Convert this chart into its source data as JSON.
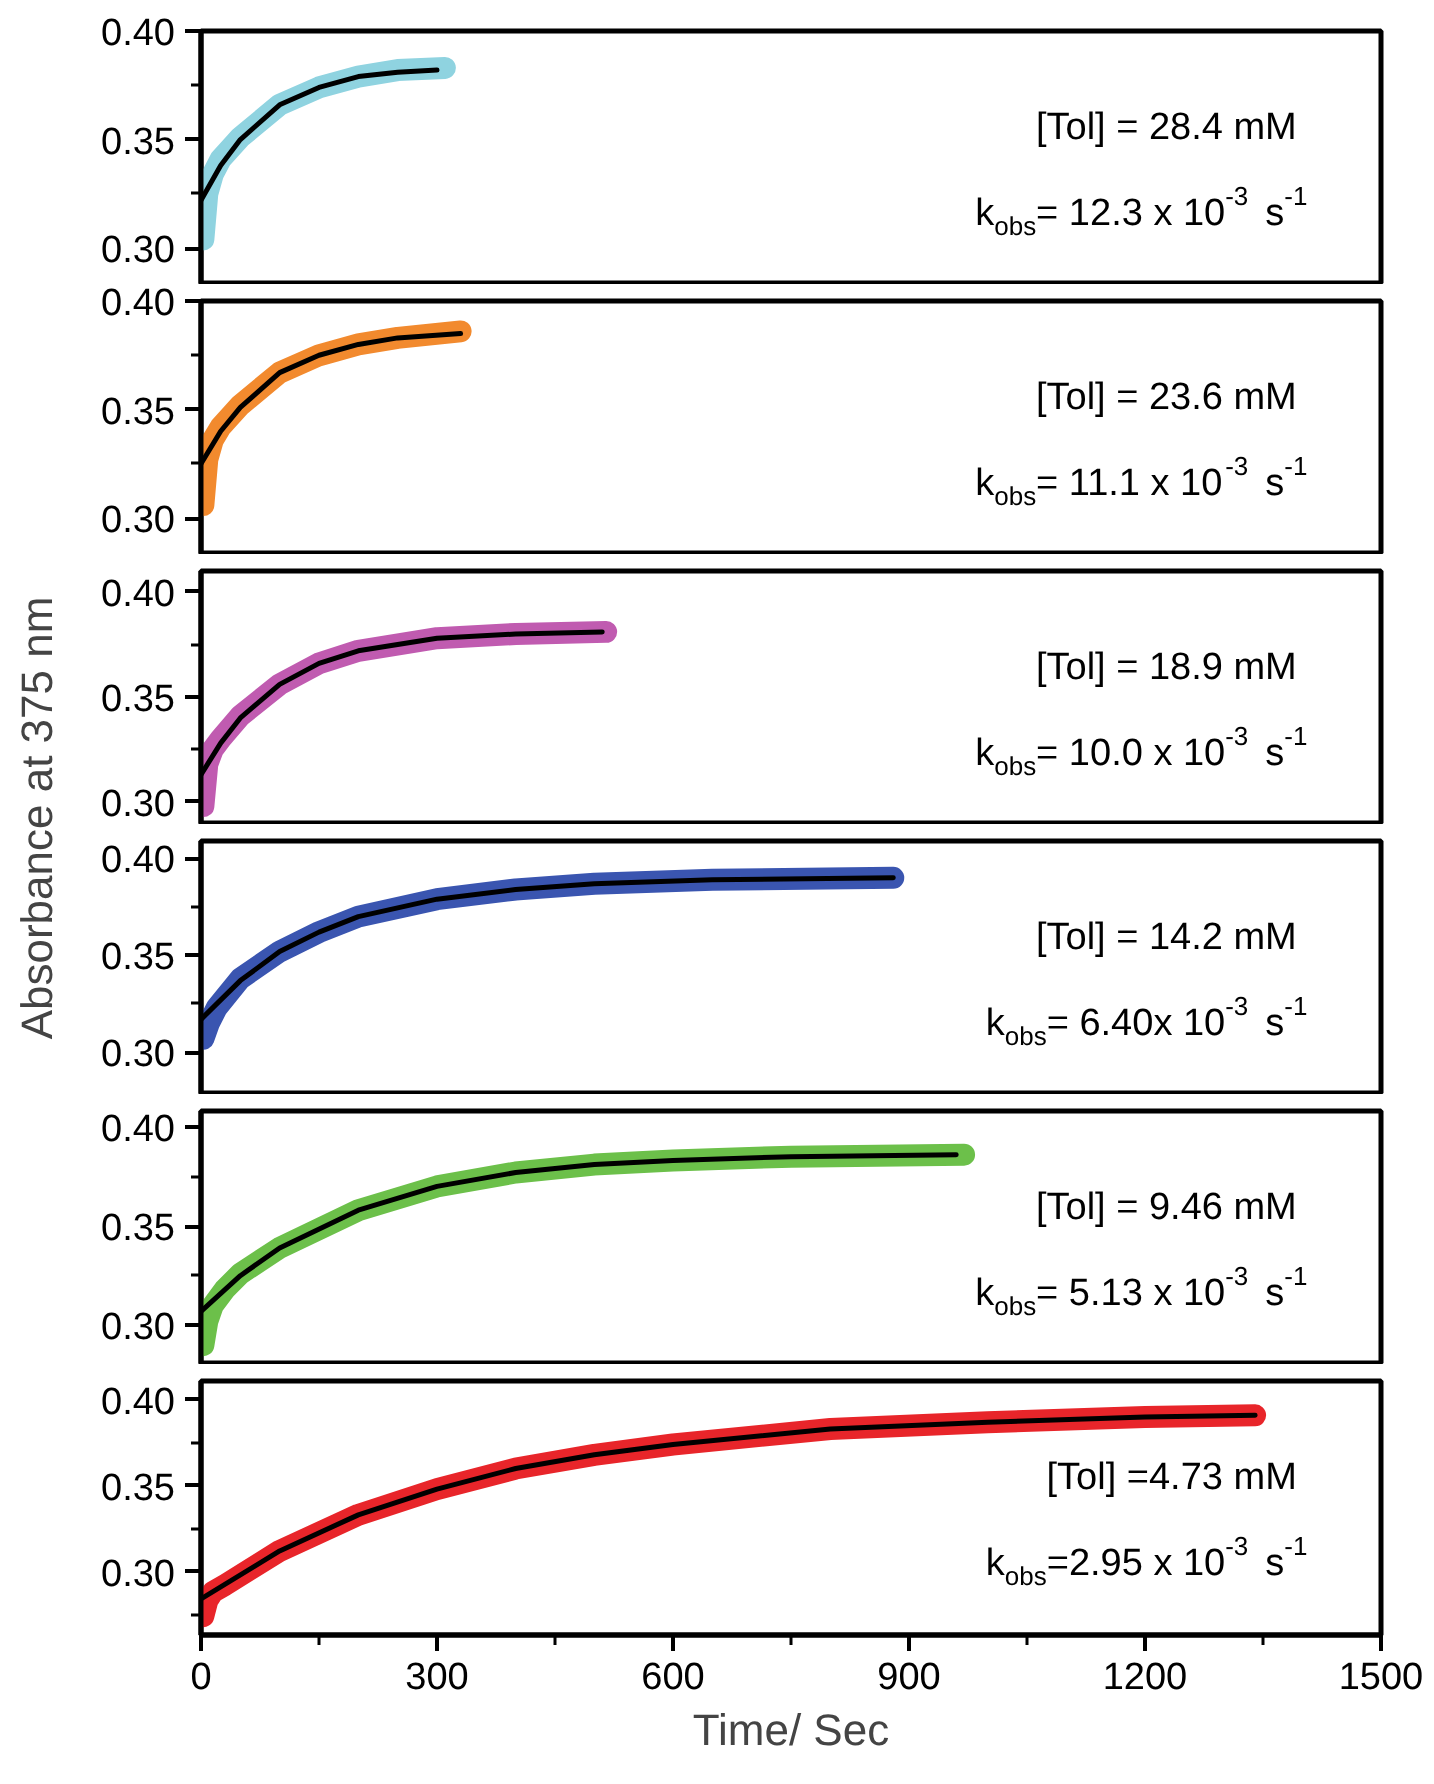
{
  "chart_data": [
    {
      "type": "line",
      "xlim": [
        0,
        1500
      ],
      "xticks": [
        0,
        300,
        600,
        900,
        1200,
        1500
      ],
      "ylim": [
        0.283,
        0.4
      ],
      "yticks": [
        {
          "value": 0.3,
          "label": "0.30"
        },
        {
          "value": 0.35,
          "label": "0.35"
        },
        {
          "value": 0.4,
          "label": "0.40"
        }
      ],
      "tick_labels": "y",
      "grid": false,
      "annotations": [
        "[Tol] = 28.4 mM",
        "k$_{obs}$= 12.3 x 10$^{-3}$ s$^{-1}$"
      ],
      "series": [
        {
          "color": "#8fd3e0",
          "x": [
            3,
            8,
            15,
            25,
            50,
            100,
            150,
            200,
            250,
            310
          ],
          "values": [
            0.304,
            0.325,
            0.334,
            0.341,
            0.351,
            0.366,
            0.374,
            0.379,
            0.382,
            0.383
          ]
        },
        {
          "color": "#000000",
          "x": [
            0,
            25,
            50,
            100,
            150,
            200,
            250,
            300
          ],
          "values": [
            0.322,
            0.338,
            0.35,
            0.366,
            0.374,
            0.379,
            0.381,
            0.382
          ]
        }
      ]
    },
    {
      "type": "line",
      "xlim": [
        0,
        1500
      ],
      "xticks": [
        0,
        300,
        600,
        900,
        1200,
        1500
      ],
      "ylim": [
        0.283,
        0.4
      ],
      "yticks": [
        {
          "value": 0.3,
          "label": "0.30"
        },
        {
          "value": 0.35,
          "label": "0.35"
        },
        {
          "value": 0.4,
          "label": "0.40"
        }
      ],
      "tick_labels": "y",
      "grid": false,
      "annotations": [
        "[Tol] = 23.6 mM",
        "k$_{obs}$= 11.1 x 10$^{-3}$ s$^{-1}$"
      ],
      "series": [
        {
          "color": "#f28a2e",
          "x": [
            3,
            8,
            15,
            25,
            50,
            100,
            150,
            200,
            250,
            330
          ],
          "values": [
            0.306,
            0.327,
            0.336,
            0.342,
            0.352,
            0.367,
            0.375,
            0.38,
            0.383,
            0.386
          ]
        },
        {
          "color": "#000000",
          "x": [
            0,
            25,
            50,
            100,
            150,
            200,
            250,
            330
          ],
          "values": [
            0.325,
            0.34,
            0.351,
            0.367,
            0.375,
            0.38,
            0.383,
            0.385
          ]
        }
      ]
    },
    {
      "type": "line",
      "xlim": [
        0,
        1500
      ],
      "xticks": [
        0,
        300,
        600,
        900,
        1200,
        1500
      ],
      "ylim": [
        0.289,
        0.41
      ],
      "yticks": [
        {
          "value": 0.3,
          "label": "0.30"
        },
        {
          "value": 0.35,
          "label": "0.35"
        },
        {
          "value": 0.4,
          "label": "0.40"
        }
      ],
      "tick_labels": "y",
      "grid": false,
      "annotations": [
        "[Tol] = 18.9 mM",
        "k$_{obs}$= 10.0 x 10$^{-3}$ s$^{-1}$"
      ],
      "series": [
        {
          "color": "#c05bb0",
          "x": [
            3,
            8,
            15,
            25,
            50,
            100,
            150,
            200,
            300,
            400,
            515
          ],
          "values": [
            0.298,
            0.318,
            0.325,
            0.33,
            0.341,
            0.356,
            0.366,
            0.372,
            0.378,
            0.38,
            0.381
          ]
        },
        {
          "color": "#000000",
          "x": [
            0,
            25,
            50,
            100,
            150,
            200,
            300,
            400,
            510
          ],
          "values": [
            0.313,
            0.328,
            0.34,
            0.356,
            0.366,
            0.372,
            0.378,
            0.38,
            0.381
          ]
        }
      ]
    },
    {
      "type": "line",
      "xlim": [
        0,
        1500
      ],
      "xticks": [
        0,
        300,
        600,
        900,
        1200,
        1500
      ],
      "ylim": [
        0.278,
        0.409
      ],
      "yticks": [
        {
          "value": 0.3,
          "label": "0.30"
        },
        {
          "value": 0.35,
          "label": "0.35"
        },
        {
          "value": 0.4,
          "label": "0.40"
        }
      ],
      "tick_labels": "y",
      "grid": false,
      "annotations": [
        "[Tol] = 14.2 mM",
        "k$_{obs}$= 6.40x 10$^{-3}$ s$^{-1}$"
      ],
      "series": [
        {
          "color": "#3a55b0",
          "x": [
            3,
            10,
            20,
            50,
            100,
            150,
            200,
            300,
            400,
            500,
            650,
            880
          ],
          "values": [
            0.307,
            0.315,
            0.323,
            0.338,
            0.352,
            0.362,
            0.37,
            0.379,
            0.384,
            0.387,
            0.389,
            0.39
          ]
        },
        {
          "color": "#000000",
          "x": [
            0,
            50,
            100,
            150,
            200,
            300,
            400,
            500,
            650,
            880
          ],
          "values": [
            0.317,
            0.337,
            0.352,
            0.362,
            0.37,
            0.379,
            0.384,
            0.387,
            0.389,
            0.39
          ]
        }
      ]
    },
    {
      "type": "line",
      "xlim": [
        0,
        1500
      ],
      "xticks": [
        0,
        300,
        600,
        900,
        1200,
        1500
      ],
      "ylim": [
        0.28,
        0.408
      ],
      "yticks": [
        {
          "value": 0.3,
          "label": "0.30"
        },
        {
          "value": 0.35,
          "label": "0.35"
        },
        {
          "value": 0.4,
          "label": "0.40"
        }
      ],
      "tick_labels": "y",
      "grid": false,
      "annotations": [
        "[Tol] = 9.46 mM",
        "k$_{obs}$= 5.13 x 10$^{-3}$ s$^{-1}$"
      ],
      "series": [
        {
          "color": "#6cc04a",
          "x": [
            3,
            8,
            15,
            30,
            50,
            100,
            200,
            300,
            400,
            500,
            600,
            750,
            970
          ],
          "values": [
            0.29,
            0.302,
            0.31,
            0.318,
            0.326,
            0.339,
            0.358,
            0.37,
            0.377,
            0.381,
            0.383,
            0.385,
            0.386
          ]
        },
        {
          "color": "#000000",
          "x": [
            0,
            50,
            100,
            200,
            300,
            400,
            500,
            600,
            750,
            960
          ],
          "values": [
            0.307,
            0.325,
            0.339,
            0.358,
            0.37,
            0.377,
            0.381,
            0.383,
            0.385,
            0.386
          ]
        }
      ]
    },
    {
      "type": "line",
      "xlim": [
        0,
        1500
      ],
      "xticks": [
        0,
        300,
        600,
        900,
        1200,
        1500
      ],
      "ylim": [
        0.263,
        0.411
      ],
      "yticks": [
        {
          "value": 0.3,
          "label": "0.30"
        },
        {
          "value": 0.35,
          "label": "0.35"
        },
        {
          "value": 0.4,
          "label": "0.40"
        }
      ],
      "grid": false,
      "xlabel": "Time/ Sec",
      "ylabel": "Absorbance at 375 nm",
      "annotations": [
        "[Tol] =4.73 mM",
        "k$_{obs}$=2.95 x 10$^{-3}$ s$^{-1}$"
      ],
      "series": [
        {
          "color": "#e8252a",
          "x": [
            3,
            8,
            15,
            30,
            100,
            200,
            300,
            400,
            500,
            600,
            800,
            1000,
            1200,
            1340
          ],
          "values": [
            0.274,
            0.283,
            0.288,
            0.292,
            0.312,
            0.333,
            0.348,
            0.36,
            0.368,
            0.374,
            0.383,
            0.387,
            0.39,
            0.391
          ]
        },
        {
          "color": "#000000",
          "x": [
            0,
            100,
            200,
            300,
            400,
            500,
            600,
            800,
            1000,
            1200,
            1340
          ],
          "values": [
            0.284,
            0.312,
            0.333,
            0.348,
            0.36,
            0.368,
            0.374,
            0.383,
            0.387,
            0.39,
            0.391
          ]
        }
      ]
    }
  ]
}
